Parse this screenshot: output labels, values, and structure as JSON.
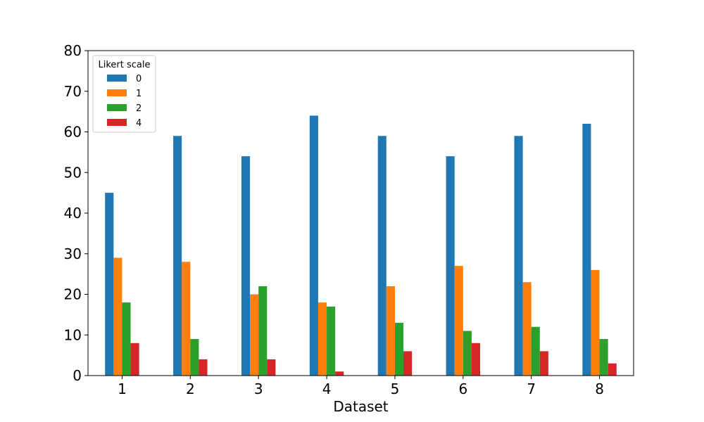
{
  "chart_data": {
    "type": "bar",
    "title": "",
    "xlabel": "Dataset",
    "ylabel": "",
    "categories": [
      "1",
      "2",
      "3",
      "4",
      "5",
      "6",
      "7",
      "8"
    ],
    "ylim": [
      0,
      80
    ],
    "yticks": [
      0,
      10,
      20,
      30,
      40,
      50,
      60,
      70,
      80
    ],
    "grid": false,
    "legend": {
      "title": "Likert scale",
      "placement": "top-left"
    },
    "series": [
      {
        "name": "0",
        "color": "#1f77b4",
        "values": [
          45,
          59,
          54,
          64,
          59,
          54,
          59,
          62
        ]
      },
      {
        "name": "1",
        "color": "#ff7f0e",
        "values": [
          29,
          28,
          20,
          18,
          22,
          27,
          23,
          26
        ]
      },
      {
        "name": "2",
        "color": "#2ca02c",
        "values": [
          18,
          9,
          22,
          17,
          13,
          11,
          12,
          9
        ]
      },
      {
        "name": "4",
        "color": "#d62728",
        "values": [
          8,
          4,
          4,
          1,
          6,
          8,
          6,
          3
        ]
      }
    ]
  }
}
